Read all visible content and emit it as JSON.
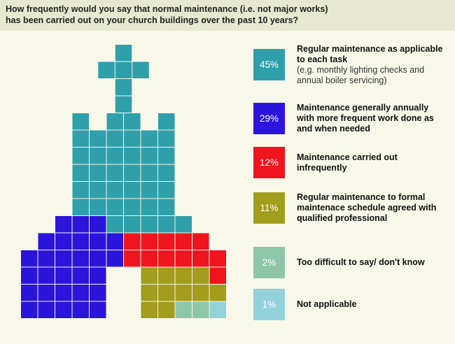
{
  "chart_data": {
    "type": "waffle",
    "title": [
      "How frequently would you say that normal maintenance (i.e. not major works)",
      "has been carried out on your church buildings over the past 10 years?"
    ],
    "series": [
      {
        "name": "Regular maintenance as applicable to each task",
        "description": "(e.g. monthly lighting checks and annual boiler servicing)",
        "color": "#2f9fab",
        "values": [
          45
        ],
        "value_labels": [
          "45%"
        ]
      },
      {
        "name": "Maintenance generally annually with more frequent work done as and when needed",
        "color": "#2b14dc",
        "values": [
          29
        ],
        "value_labels": [
          "29%"
        ]
      },
      {
        "name": "Maintenance carried out infrequently",
        "color": "#f0141e",
        "values": [
          12
        ],
        "value_labels": [
          "12%"
        ]
      },
      {
        "name": "Regular maintenance to formal maintenace schedule agreed with qualified professional",
        "color": "#a39c1c",
        "values": [
          11
        ],
        "value_labels": [
          "11%"
        ]
      },
      {
        "name": "Too difficult to say/ don't know",
        "color": "#8ec6a9",
        "values": [
          2
        ],
        "value_labels": [
          "2%"
        ]
      },
      {
        "name": "Not applicable",
        "color": "#93d2da",
        "values": [
          1
        ],
        "value_labels": [
          "1%"
        ]
      }
    ]
  }
}
